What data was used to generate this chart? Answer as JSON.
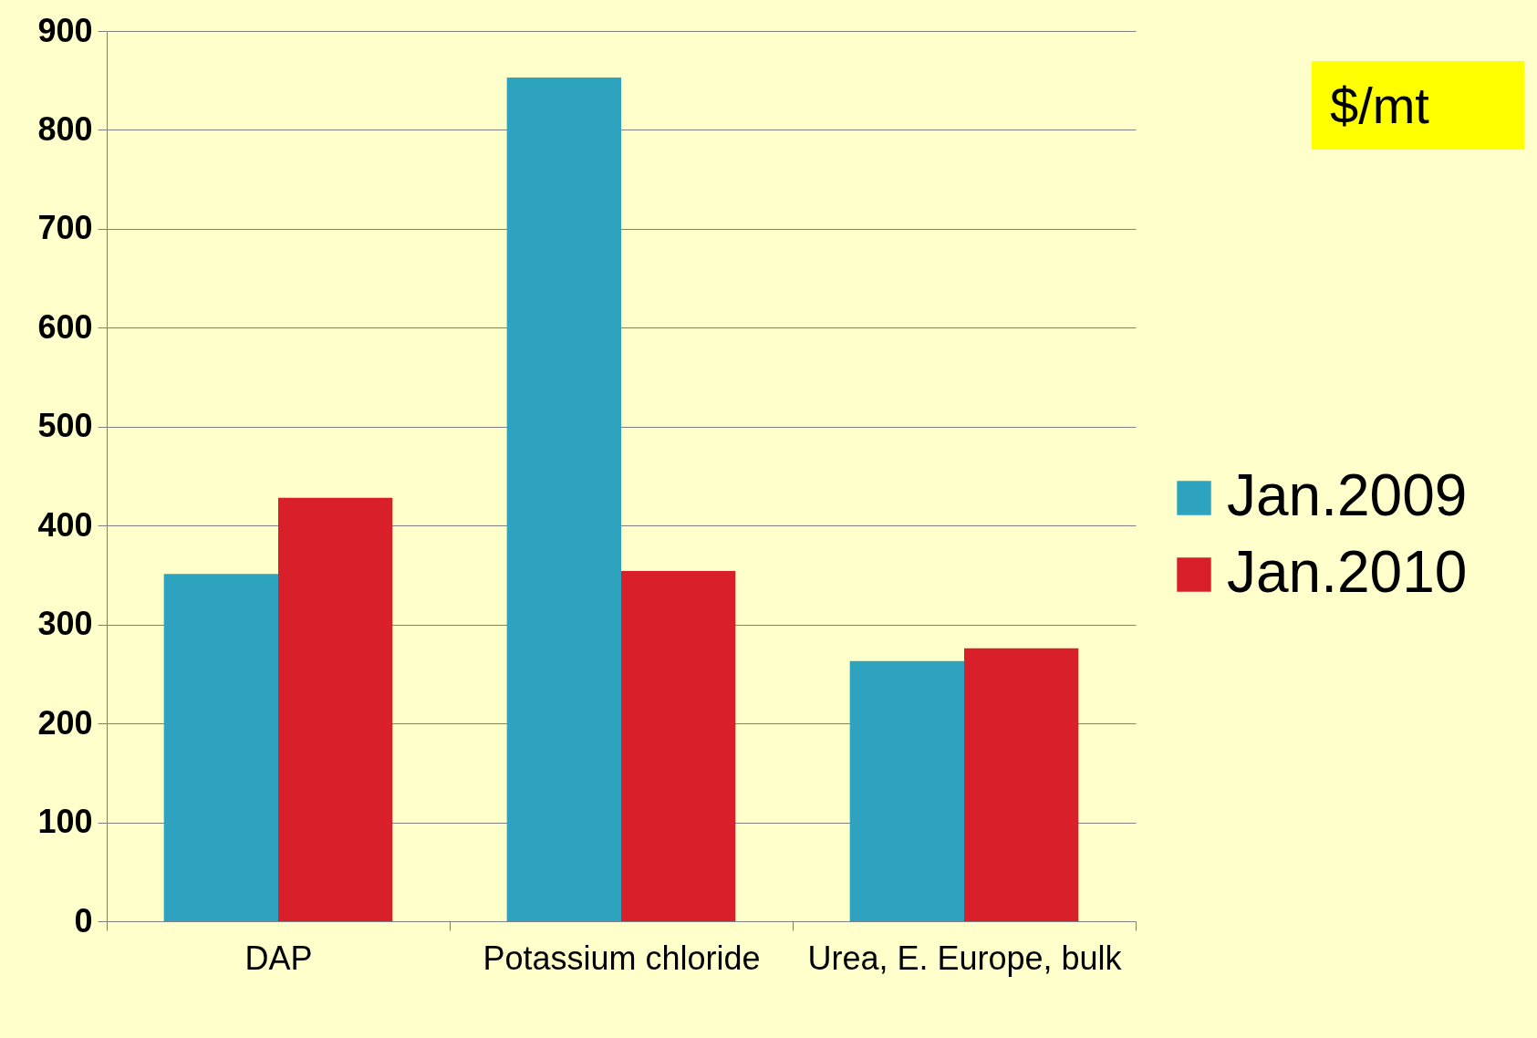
{
  "chart_data": {
    "type": "bar",
    "categories": [
      "DAP",
      "Potassium chloride",
      "Urea, E. Europe, bulk"
    ],
    "series": [
      {
        "name": "Jan.2009",
        "color": "#2ea3bf",
        "values": [
          351,
          853,
          263
        ]
      },
      {
        "name": "Jan.2010",
        "color": "#d9202a",
        "values": [
          428,
          354,
          276
        ]
      }
    ],
    "ylim": [
      0,
      900
    ],
    "yticks": [
      0,
      100,
      200,
      300,
      400,
      500,
      600,
      700,
      800,
      900
    ],
    "grid": "y",
    "legend": "right",
    "annotations": [
      "$/mt"
    ]
  }
}
